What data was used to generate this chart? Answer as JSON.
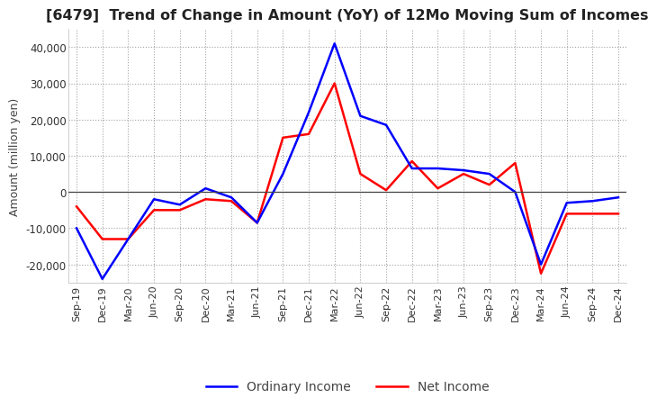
{
  "title": "[6479]  Trend of Change in Amount (YoY) of 12Mo Moving Sum of Incomes",
  "ylabel": "Amount (million yen)",
  "labels": [
    "Sep-19",
    "Dec-19",
    "Mar-20",
    "Jun-20",
    "Sep-20",
    "Dec-20",
    "Mar-21",
    "Jun-21",
    "Sep-21",
    "Dec-21",
    "Mar-22",
    "Jun-22",
    "Sep-22",
    "Dec-22",
    "Mar-23",
    "Jun-23",
    "Sep-23",
    "Dec-23",
    "Mar-24",
    "Jun-24",
    "Sep-24",
    "Dec-24"
  ],
  "ordinary_income": [
    -10000,
    -24000,
    -13000,
    -2000,
    -3500,
    1000,
    -1500,
    -8500,
    5000,
    22000,
    41000,
    21000,
    18500,
    6500,
    6500,
    6000,
    5000,
    0,
    -20000,
    -3000,
    -2500,
    -1500
  ],
  "net_income": [
    -4000,
    -13000,
    -13000,
    -5000,
    -5000,
    -2000,
    -2500,
    -8500,
    15000,
    16000,
    30000,
    5000,
    500,
    8500,
    1000,
    5000,
    2000,
    8000,
    -22500,
    -6000,
    -6000,
    -6000
  ],
  "ordinary_color": "#0000FF",
  "net_color": "#FF0000",
  "bg_color": "#FFFFFF",
  "grid_color": "#999999",
  "ylim": [
    -25000,
    45000
  ],
  "yticks": [
    -20000,
    -10000,
    0,
    10000,
    20000,
    30000,
    40000
  ]
}
